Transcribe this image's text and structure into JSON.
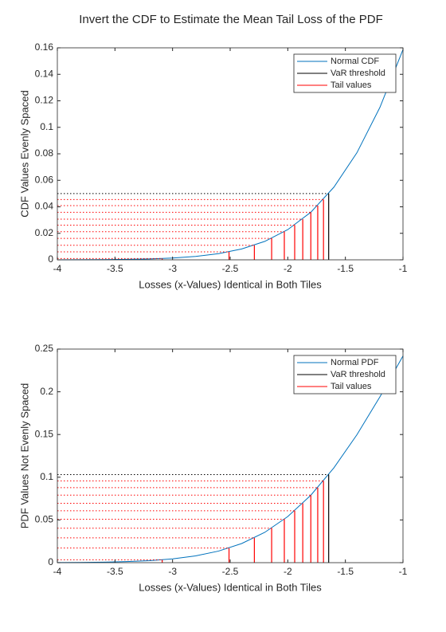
{
  "chart_data": [
    {
      "type": "line",
      "title": "Invert the CDF to Estimate the Mean Tail Loss of the PDF",
      "xlabel": "Losses (x-Values) Identical in Both Tiles",
      "ylabel": "CDF Values Evenly Spaced",
      "xlim": [
        -4,
        -1
      ],
      "xticks": [
        -4,
        -3.5,
        -3,
        -2.5,
        -2,
        -1.5,
        -1
      ],
      "ylim": [
        0,
        0.16
      ],
      "yticks": [
        0,
        0.02,
        0.04,
        0.06,
        0.08,
        0.1,
        0.12,
        0.14,
        0.16
      ],
      "legend": "upper right",
      "series": [
        {
          "name": "Normal CDF",
          "color": "#0072bd",
          "x": [
            -4,
            -3.8,
            -3.6,
            -3.4,
            -3.2,
            -3.0,
            -2.8,
            -2.6,
            -2.4,
            -2.2,
            -2.0,
            -1.8,
            -1.6,
            -1.4,
            -1.2,
            -1.0
          ],
          "values": [
            3e-05,
            7e-05,
            0.00016,
            0.00034,
            0.00069,
            0.00135,
            0.00256,
            0.00466,
            0.0082,
            0.0139,
            0.0228,
            0.0359,
            0.0548,
            0.0808,
            0.1151,
            0.1587
          ]
        },
        {
          "name": "VaR threshold",
          "color": "#000000",
          "x": [
            -1.645
          ],
          "values": [
            0.05
          ]
        },
        {
          "name": "Tail values",
          "color": "#ff0000",
          "x": [
            -3.09,
            -2.51,
            -2.29,
            -2.14,
            -2.03,
            -1.94,
            -1.87,
            -1.8,
            -1.74,
            -1.69
          ],
          "values": [
            0.001,
            0.006,
            0.011,
            0.0162,
            0.0212,
            0.0262,
            0.0307,
            0.0359,
            0.0409,
            0.0455
          ]
        }
      ]
    },
    {
      "type": "line",
      "xlabel": "Losses (x-Values) Identical in Both Tiles",
      "ylabel": "PDF Values Not Evenly Spaced",
      "xlim": [
        -4,
        -1
      ],
      "xticks": [
        -4,
        -3.5,
        -3,
        -2.5,
        -2,
        -1.5,
        -1
      ],
      "ylim": [
        0,
        0.25
      ],
      "yticks": [
        0,
        0.05,
        0.1,
        0.15,
        0.2,
        0.25
      ],
      "legend": "upper right",
      "series": [
        {
          "name": "Normal PDF",
          "color": "#0072bd",
          "x": [
            -4,
            -3.8,
            -3.6,
            -3.4,
            -3.2,
            -3.0,
            -2.8,
            -2.6,
            -2.4,
            -2.2,
            -2.0,
            -1.8,
            -1.6,
            -1.4,
            -1.2,
            -1.0
          ],
          "values": [
            0.00013,
            0.00029,
            0.00061,
            0.00123,
            0.00238,
            0.00443,
            0.00792,
            0.01358,
            0.02239,
            0.03547,
            0.05399,
            0.07895,
            0.11092,
            0.14973,
            0.19419,
            0.24197
          ]
        },
        {
          "name": "VaR threshold",
          "color": "#000000",
          "x": [
            -1.645
          ],
          "values": [
            0.1031
          ]
        },
        {
          "name": "Tail values",
          "color": "#ff0000",
          "x": [
            -3.09,
            -2.51,
            -2.29,
            -2.14,
            -2.03,
            -1.94,
            -1.87,
            -1.8,
            -1.74,
            -1.69
          ],
          "values": [
            0.00337,
            0.0171,
            0.029,
            0.0404,
            0.0508,
            0.0608,
            0.0695,
            0.079,
            0.0878,
            0.0957
          ]
        }
      ]
    }
  ]
}
